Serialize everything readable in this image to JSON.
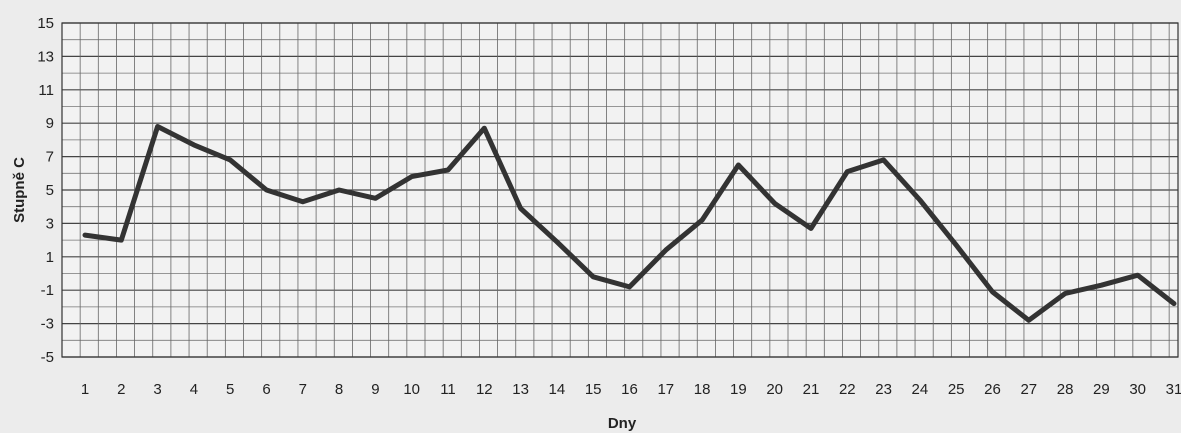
{
  "chart_data": {
    "type": "line",
    "title": "",
    "xlabel": "Dny",
    "ylabel": "Stupně C",
    "x": [
      1,
      2,
      3,
      4,
      5,
      6,
      7,
      8,
      9,
      10,
      11,
      12,
      13,
      14,
      15,
      16,
      17,
      18,
      19,
      20,
      21,
      22,
      23,
      24,
      25,
      26,
      27,
      28,
      29,
      30,
      31
    ],
    "x_tick_labels": [
      "1",
      "2",
      "3",
      "4",
      "5",
      "6",
      "7",
      "8",
      "9",
      "10",
      "11",
      "12",
      "13",
      "14",
      "15",
      "16",
      "17",
      "18",
      "19",
      "20",
      "21",
      "22",
      "23",
      "24",
      "25",
      "26",
      "27",
      "28",
      "29",
      "30",
      "31"
    ],
    "y_tick_labels": [
      "15",
      "13",
      "11",
      "9",
      "7",
      "5",
      "3",
      "1",
      "-1",
      "-3",
      "-5"
    ],
    "y_ticks": [
      15,
      13,
      11,
      9,
      7,
      5,
      3,
      1,
      -1,
      -3,
      -5
    ],
    "ylim": [
      -5,
      15
    ],
    "grid": true,
    "series": [
      {
        "values": [
          2.3,
          2.0,
          8.8,
          7.7,
          6.8,
          5.0,
          4.3,
          5.0,
          4.5,
          5.8,
          6.2,
          8.7,
          3.9,
          1.9,
          -0.2,
          -0.8,
          1.4,
          3.2,
          6.5,
          4.2,
          2.7,
          6.1,
          6.8,
          4.4,
          1.7,
          -1.1,
          -2.8,
          -1.2,
          -0.7,
          -0.1,
          -1.8
        ],
        "color": "#333333"
      }
    ]
  }
}
